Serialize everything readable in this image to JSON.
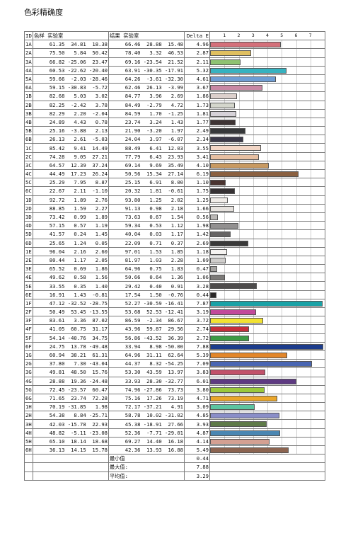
{
  "title": "色彩精确度",
  "headers": {
    "id": "ID",
    "target": "色样 实验室",
    "result": "结果 实验室",
    "delta": "Delta E"
  },
  "axis_ticks": [
    "1",
    "2",
    "3",
    "4",
    "5",
    "6",
    "7"
  ],
  "rows": [
    {
      "id": "1A",
      "t": "61.35  34.81  18.38",
      "r": "66.46  28.88  15.48",
      "d": "4.96",
      "dv": 4.96,
      "color": "#d4707a"
    },
    {
      "id": "2A",
      "t": "75.50   5.84  50.42",
      "r": "78.40   3.32  46.53",
      "d": "2.87",
      "dv": 2.87,
      "color": "#e0bf60"
    },
    {
      "id": "3A",
      "t": "66.82 -25.06  23.47",
      "r": "69.16 -23.54  21.52",
      "d": "2.11",
      "dv": 2.11,
      "color": "#8ec272"
    },
    {
      "id": "4A",
      "t": "60.53 -22.62 -20.40",
      "r": "63.91 -30.35 -17.91",
      "d": "5.32",
      "dv": 5.32,
      "color": "#36b2c0"
    },
    {
      "id": "5A",
      "t": "59.66  -2.03 -28.46",
      "r": "64.26  -3.61 -32.30",
      "d": "4.61",
      "dv": 4.61,
      "color": "#6e9dd4"
    },
    {
      "id": "6A",
      "t": "59.15 -30.83  -5.72",
      "r": "62.46  26.13  -3.99",
      "d": "3.67",
      "dv": 3.67,
      "color": "#c888a4"
    },
    {
      "id": "1B",
      "t": "82.68   5.03   3.02",
      "r": "84.77   3.96   2.69",
      "d": "1.86",
      "dv": 1.86,
      "color": "#dcd0cc"
    },
    {
      "id": "2B",
      "t": "82.25  -2.42   3.78",
      "r": "84.49  -2.79   4.72",
      "d": "1.73",
      "dv": 1.73,
      "color": "#d4d6cc"
    },
    {
      "id": "3B",
      "t": "82.29   2.20  -2.04",
      "r": "84.59   1.70  -1.25",
      "d": "1.81",
      "dv": 1.81,
      "color": "#d6d2d8"
    },
    {
      "id": "4B",
      "t": "24.89   4.43   0.78",
      "r": "23.74   3.24   1.43",
      "d": "1.77",
      "dv": 1.77,
      "color": "#3e3434"
    },
    {
      "id": "5B",
      "t": "25.16  -3.88   2.13",
      "r": "21.90  -3.20   1.97",
      "d": "2.49",
      "dv": 2.49,
      "color": "#36383a"
    },
    {
      "id": "6B",
      "t": "26.13   2.61  -5.03",
      "r": "24.04   3.97  -6.07",
      "d": "2.34",
      "dv": 2.34,
      "color": "#3a3848"
    },
    {
      "id": "1C",
      "t": "85.42   9.41  14.49",
      "r": "88.49   6.41  12.03",
      "d": "3.55",
      "dv": 3.55,
      "color": "#f2d6c6"
    },
    {
      "id": "2C",
      "t": "74.28   9.05  27.21",
      "r": "77.79   6.43  23.93",
      "d": "3.41",
      "dv": 3.41,
      "color": "#e6bfa2"
    },
    {
      "id": "3C",
      "t": "64.57  12.39  37.24",
      "r": "69.14   9.69  35.49",
      "d": "4.10",
      "dv": 4.1,
      "color": "#c89a62"
    },
    {
      "id": "4C",
      "t": "44.49  17.23  26.24",
      "r": "50.56  15.34  27.14",
      "d": "6.19",
      "dv": 6.19,
      "color": "#8a6040"
    },
    {
      "id": "5C",
      "t": "25.29   7.95   8.87",
      "r": "25.15   6.91   8.00",
      "d": "1.10",
      "dv": 1.1,
      "color": "#4a3430"
    },
    {
      "id": "6C",
      "t": "22.67   2.11  -1.10",
      "r": "20.32   1.81  -0.61",
      "d": "1.75",
      "dv": 1.75,
      "color": "#363234"
    },
    {
      "id": "1D",
      "t": "92.72   1.89   2.76",
      "r": "93.80   1.25   2.02",
      "d": "1.25",
      "dv": 1.25,
      "color": "#f0ece8"
    },
    {
      "id": "2D",
      "t": "88.85   1.59   2.27",
      "r": "91.13   0.98   2.18",
      "d": "1.66",
      "dv": 1.66,
      "color": "#e6e2de"
    },
    {
      "id": "3D",
      "t": "73.42   0.99   1.89",
      "r": "73.63   0.67   1.54",
      "d": "0.56",
      "dv": 0.56,
      "color": "#bab8b6"
    },
    {
      "id": "4D",
      "t": "57.15   0.57   1.19",
      "r": "59.34   0.53   1.12",
      "d": "1.98",
      "dv": 1.98,
      "color": "#929090"
    },
    {
      "id": "5D",
      "t": "41.57   0.24   1.45",
      "r": "40.04   0.03   1.17",
      "d": "1.42",
      "dv": 1.42,
      "color": "#666464"
    },
    {
      "id": "6D",
      "t": "25.65   1.24   0.05",
      "r": "22.09   0.71   0.37",
      "d": "2.69",
      "dv": 2.69,
      "color": "#3a3a3a"
    },
    {
      "id": "1E",
      "t": "96.04   2.16   2.60",
      "r": "97.01   1.53   1.85",
      "d": "1.18",
      "dv": 1.18,
      "color": "#f6f4f2"
    },
    {
      "id": "2E",
      "t": "80.44   1.17   2.05",
      "r": "81.97   1.03   2.28",
      "d": "1.09",
      "dv": 1.09,
      "color": "#d0cecc"
    },
    {
      "id": "3E",
      "t": "65.52   0.69   1.86",
      "r": "64.96   0.75   1.83",
      "d": "0.47",
      "dv": 0.47,
      "color": "#a6a4a2"
    },
    {
      "id": "4E",
      "t": "49.62   0.58   1.56",
      "r": "50.66   0.64   1.36",
      "d": "1.06",
      "dv": 1.06,
      "color": "#7c7a78"
    },
    {
      "id": "5E",
      "t": "33.55   0.35   1.40",
      "r": "29.42   0.40   0.91",
      "d": "3.28",
      "dv": 3.28,
      "color": "#4e4c4c"
    },
    {
      "id": "6E",
      "t": "16.91   1.43  -0.81",
      "r": "17.54   1.50  -0.76",
      "d": "0.44",
      "dv": 0.44,
      "color": "#2a2828"
    },
    {
      "id": "1F",
      "t": "47.12 -32.52 -28.75",
      "r": "52.27 -30.59 -16.41",
      "d": "7.87",
      "dv": 7.87,
      "color": "#1aa2a6"
    },
    {
      "id": "2F",
      "t": "50.49  53.45 -13.55",
      "r": "53.68  52.53 -12.41",
      "d": "3.19",
      "dv": 3.19,
      "color": "#c24a9a"
    },
    {
      "id": "3F",
      "t": "83.61   3.36  87.02",
      "r": "86.59  -2.34  86.67",
      "d": "3.72",
      "dv": 3.72,
      "color": "#f2e232"
    },
    {
      "id": "4F",
      "t": "41.05  60.75  31.17",
      "r": "43.96  59.87  29.56",
      "d": "2.74",
      "dv": 2.74,
      "color": "#c62e3a"
    },
    {
      "id": "5F",
      "t": "54.14 -40.76  34.75",
      "r": "56.86 -43.52  36.39",
      "d": "2.72",
      "dv": 2.72,
      "color": "#3c9a44"
    },
    {
      "id": "6F",
      "t": "24.75  13.78 -49.48",
      "r": "33.94   8.98 -50.00",
      "d": "7.88",
      "dv": 7.88,
      "color": "#1c3c8c"
    },
    {
      "id": "1G",
      "t": "60.94  38.21  61.31",
      "r": "64.96  31.11  62.64",
      "d": "5.39",
      "dv": 5.39,
      "color": "#e2862a"
    },
    {
      "id": "2G",
      "t": "37.80   7.30 -43.04",
      "r": "44.37   8.32 -54.25",
      "d": "7.09",
      "dv": 7.09,
      "color": "#4a66b2"
    },
    {
      "id": "3G",
      "t": "49.81  48.50  15.76",
      "r": "53.30  43.59  13.97",
      "d": "3.83",
      "dv": 3.83,
      "color": "#c2526a"
    },
    {
      "id": "4G",
      "t": "28.88  19.36 -24.48",
      "r": "33.93  28.30 -32.77",
      "d": "6.01",
      "dv": 6.01,
      "color": "#5e3a82"
    },
    {
      "id": "5G",
      "t": "72.45 -23.57  60.47",
      "r": "74.96 -27.86  73.73",
      "d": "3.80",
      "dv": 3.8,
      "color": "#9ac83c"
    },
    {
      "id": "6G",
      "t": "71.65  23.74  72.28",
      "r": "75.16  17.26  73.19",
      "d": "4.71",
      "dv": 4.71,
      "color": "#eaa62a"
    },
    {
      "id": "1H",
      "t": "70.19 -31.85   1.98",
      "r": "72.17 -37.21   4.91",
      "d": "3.09",
      "dv": 3.09,
      "color": "#5cc4a0"
    },
    {
      "id": "2H",
      "t": "54.38   8.84 -25.71",
      "r": "58.78  10.02 -31.02",
      "d": "4.85",
      "dv": 4.85,
      "color": "#8a8ec8"
    },
    {
      "id": "3H",
      "t": "42.03 -15.78  22.93",
      "r": "45.38 -18.91  27.66",
      "d": "3.93",
      "dv": 3.93,
      "color": "#5e7a48"
    },
    {
      "id": "4H",
      "t": "48.82  -5.11 -23.08",
      "r": "52.36  -7.71 -29.01",
      "d": "4.87",
      "dv": 4.87,
      "color": "#4a86b2"
    },
    {
      "id": "5H",
      "t": "65.10  18.14  18.68",
      "r": "69.27  14.40  16.18",
      "d": "4.14",
      "dv": 4.14,
      "color": "#d4a092"
    },
    {
      "id": "6H",
      "t": "36.13  14.15  15.78",
      "r": "42.36  13.93  16.88",
      "d": "5.49",
      "dv": 5.49,
      "color": "#8c6450"
    }
  ],
  "summary": [
    {
      "label": "最小值",
      "value": "0.44"
    },
    {
      "label": "最大值:",
      "value": "7.88"
    },
    {
      "label": "平均值:",
      "value": "3.29"
    }
  ]
}
